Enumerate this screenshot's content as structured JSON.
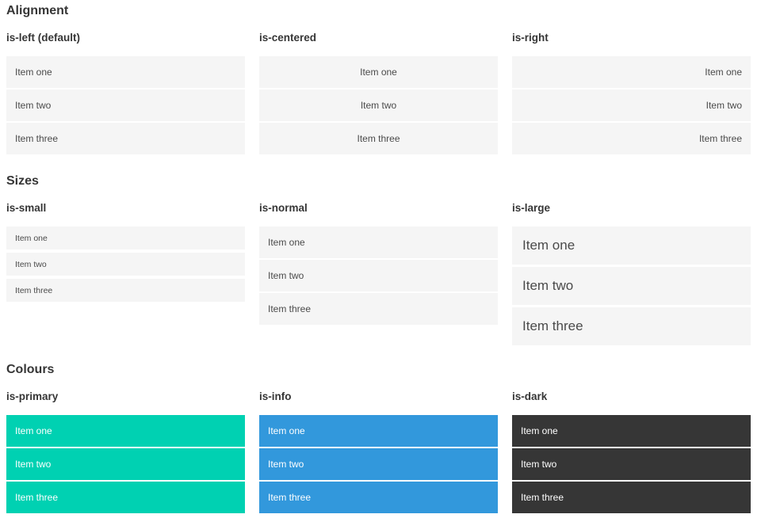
{
  "sections": [
    {
      "title": "Alignment",
      "groups": [
        {
          "label": "is-left (default)",
          "items": [
            "Item one",
            "Item two",
            "Item three"
          ]
        },
        {
          "label": "is-centered",
          "items": [
            "Item one",
            "Item two",
            "Item three"
          ]
        },
        {
          "label": "is-right",
          "items": [
            "Item one",
            "Item two",
            "Item three"
          ]
        }
      ]
    },
    {
      "title": "Sizes",
      "groups": [
        {
          "label": "is-small",
          "items": [
            "Item one",
            "Item two",
            "Item three"
          ]
        },
        {
          "label": "is-normal",
          "items": [
            "Item one",
            "Item two",
            "Item three"
          ]
        },
        {
          "label": "is-large",
          "items": [
            "Item one",
            "Item two",
            "Item three"
          ]
        }
      ]
    },
    {
      "title": "Colours",
      "groups": [
        {
          "label": "is-primary",
          "items": [
            "Item one",
            "Item two",
            "Item three"
          ]
        },
        {
          "label": "is-info",
          "items": [
            "Item one",
            "Item two",
            "Item three"
          ]
        },
        {
          "label": "is-dark",
          "items": [
            "Item one",
            "Item two",
            "Item three"
          ]
        }
      ]
    }
  ],
  "colors": {
    "primary": "#00d1b2",
    "info": "#3298dc",
    "dark": "#363636",
    "item_background": "#f5f5f5",
    "item_text": "#4a4a4a",
    "item_text_on_color": "#ffffff",
    "heading_text": "#363636",
    "page_background": "#ffffff"
  }
}
